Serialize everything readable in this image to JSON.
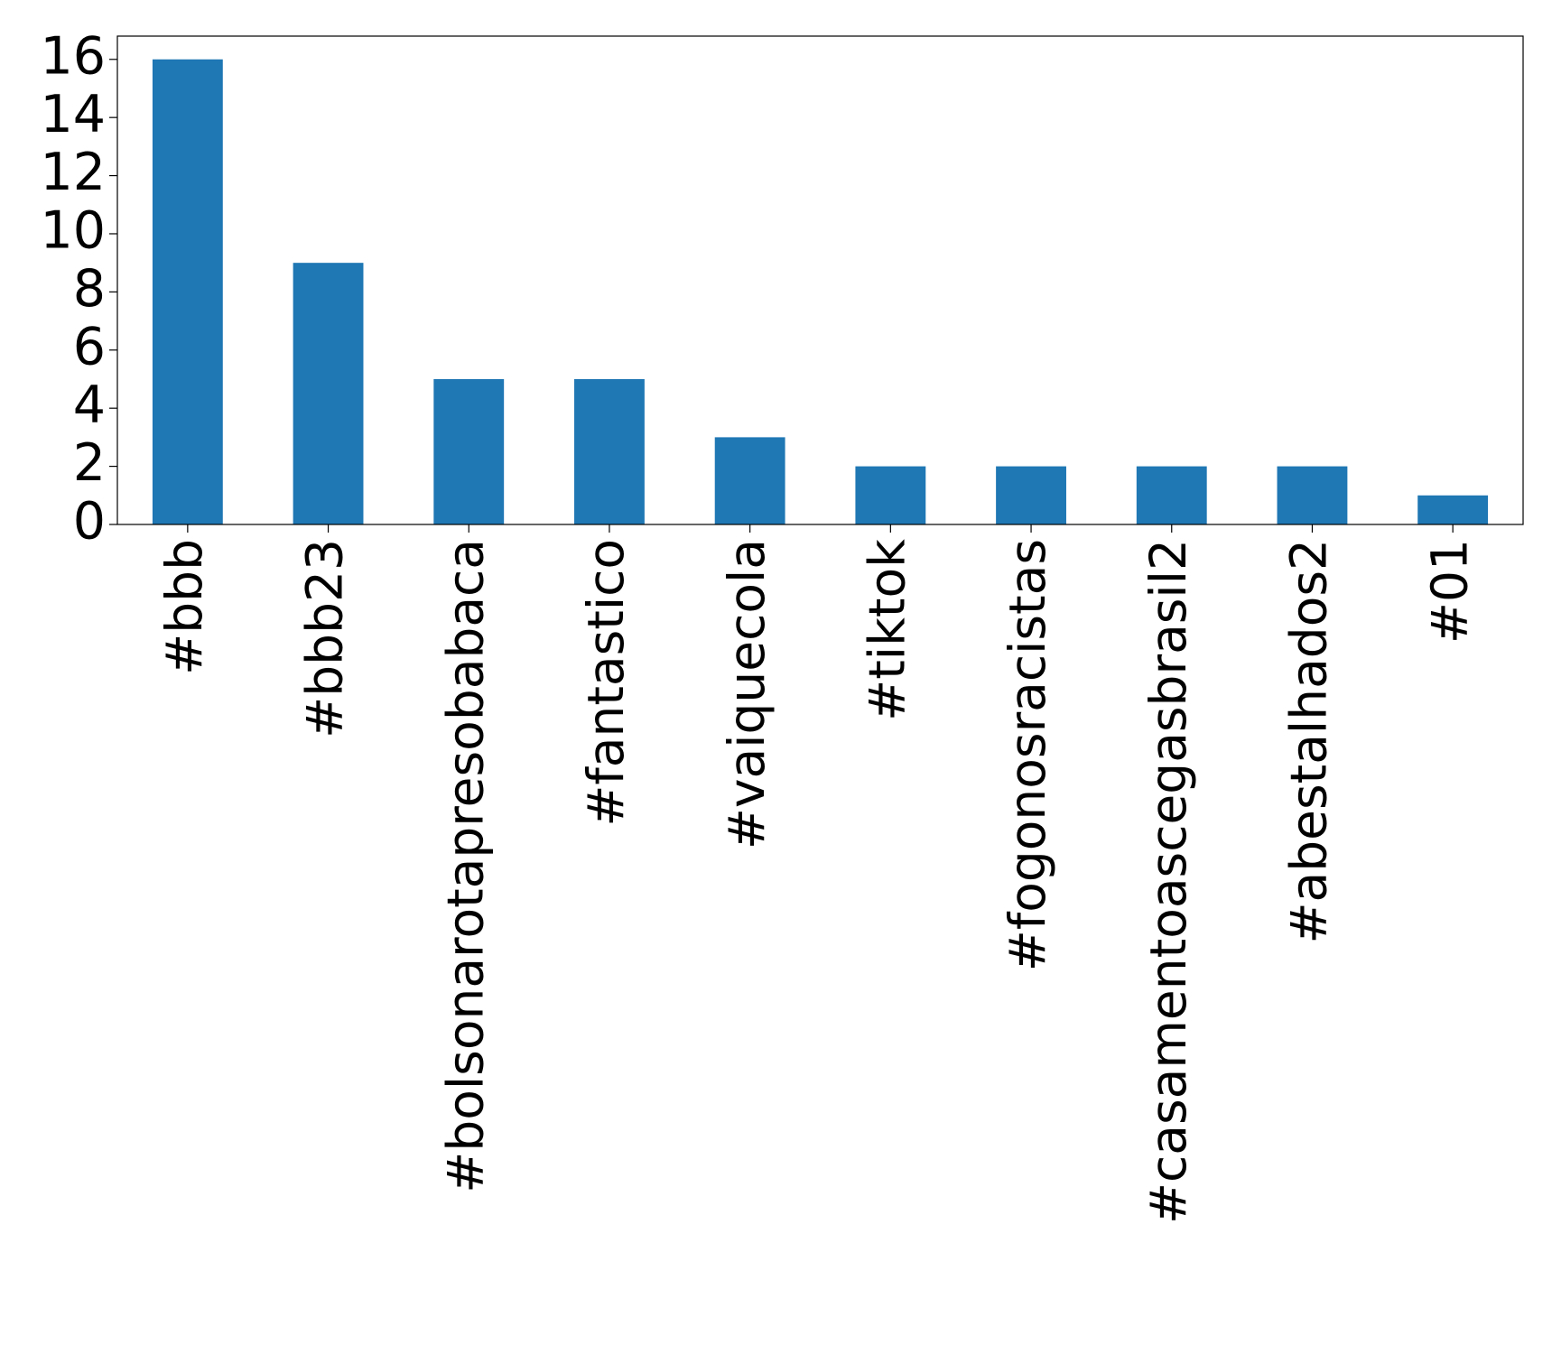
{
  "chart_data": {
    "type": "bar",
    "categories": [
      "#bbb",
      "#bbb23",
      "#bolsonarotapresobabaca",
      "#fantastico",
      "#vaiquecola",
      "#tiktok",
      "#fogonosracistas",
      "#casamentoascegasbrasil2",
      "#abestalhados2",
      "#01"
    ],
    "values": [
      16,
      9,
      5,
      5,
      3,
      2,
      2,
      2,
      2,
      1
    ],
    "color": "#1f77b4",
    "ylim": [
      0,
      16.8
    ],
    "yticks": [
      0,
      2,
      4,
      6,
      8,
      10,
      12,
      14,
      16
    ],
    "grid": false
  }
}
